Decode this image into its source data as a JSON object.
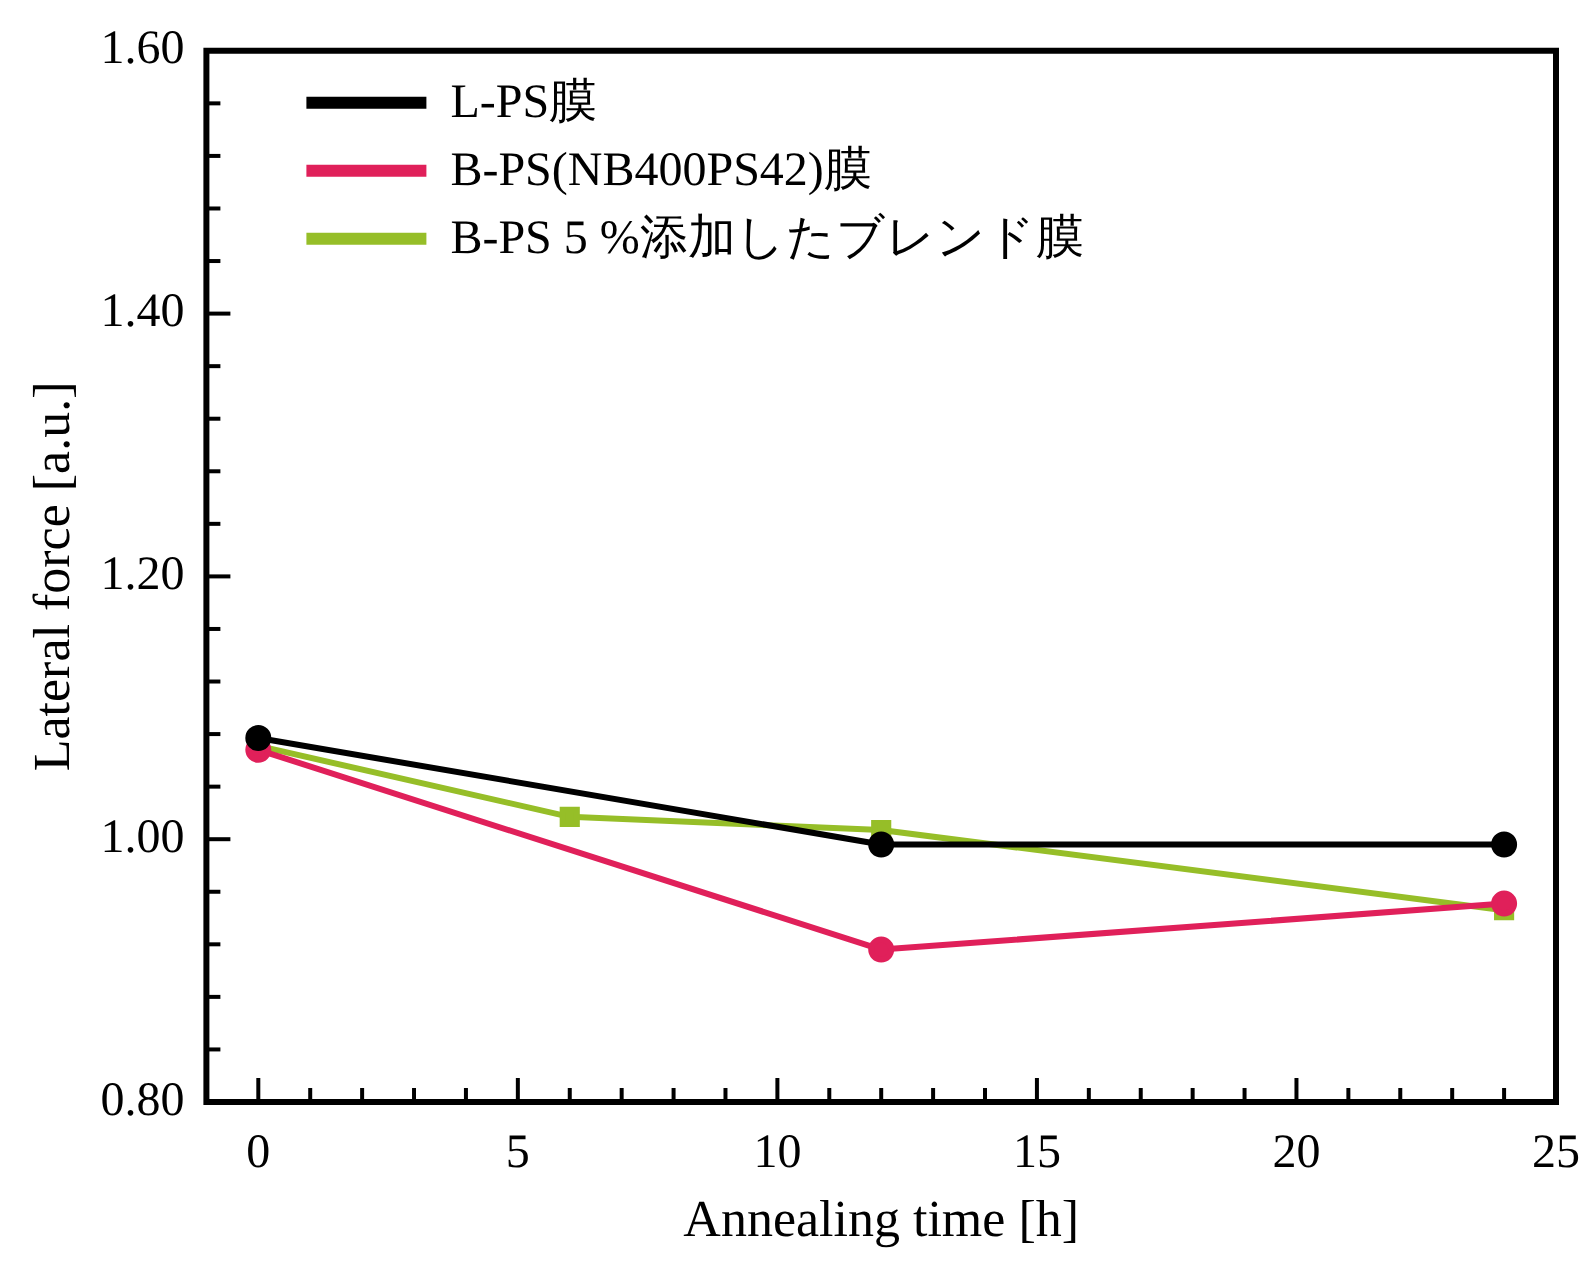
{
  "chart_data": {
    "type": "line",
    "xlabel": "Annealing time [h]",
    "ylabel": "Lateral force [a.u.]",
    "xlim": [
      -1,
      25
    ],
    "ylim": [
      0.8,
      1.6
    ],
    "xticks": [
      0,
      {
        "value": 1,
        "label": null
      },
      {
        "value": 2,
        "label": null
      },
      {
        "value": 3,
        "label": null
      },
      {
        "value": 4,
        "label": null
      },
      5,
      {
        "value": 6,
        "label": null
      },
      {
        "value": 7,
        "label": null
      },
      {
        "value": 8,
        "label": null
      },
      {
        "value": 9,
        "label": null
      },
      10,
      {
        "value": 11,
        "label": null
      },
      {
        "value": 12,
        "label": null
      },
      {
        "value": 13,
        "label": null
      },
      {
        "value": 14,
        "label": null
      },
      15,
      {
        "value": 16,
        "label": null
      },
      {
        "value": 17,
        "label": null
      },
      {
        "value": 18,
        "label": null
      },
      {
        "value": 19,
        "label": null
      },
      20,
      {
        "value": 21,
        "label": null
      },
      {
        "value": 22,
        "label": null
      },
      {
        "value": 23,
        "label": null
      },
      {
        "value": 24,
        "label": null
      },
      25
    ],
    "yticks": [
      {
        "value": 0.8,
        "label": "0.80"
      },
      {
        "value": 0.84,
        "label": null
      },
      {
        "value": 0.88,
        "label": null
      },
      {
        "value": 0.92,
        "label": null
      },
      {
        "value": 0.96,
        "label": null
      },
      {
        "value": 1.0,
        "label": "1.00"
      },
      {
        "value": 1.04,
        "label": null
      },
      {
        "value": 1.08,
        "label": null
      },
      {
        "value": 1.12,
        "label": null
      },
      {
        "value": 1.16,
        "label": null
      },
      {
        "value": 1.2,
        "label": "1.20"
      },
      {
        "value": 1.24,
        "label": null
      },
      {
        "value": 1.28,
        "label": null
      },
      {
        "value": 1.32,
        "label": null
      },
      {
        "value": 1.36,
        "label": null
      },
      {
        "value": 1.4,
        "label": "1.40"
      },
      {
        "value": 1.44,
        "label": null
      },
      {
        "value": 1.48,
        "label": null
      },
      {
        "value": 1.52,
        "label": null
      },
      {
        "value": 1.56,
        "label": null
      },
      {
        "value": 1.6,
        "label": "1.60"
      }
    ],
    "grid": false,
    "legend": "top left",
    "line_style": "solid",
    "series": [
      {
        "name": "L-PS膜",
        "color": "#000000",
        "marker": "circle",
        "x": [
          0,
          12,
          24
        ],
        "values": [
          1.077,
          0.996,
          0.996
        ]
      },
      {
        "name": "B-PS(NB400PS42)膜",
        "color": "#e0205a",
        "marker": "circle",
        "x": [
          0,
          12,
          24
        ],
        "values": [
          1.068,
          0.916,
          0.951
        ]
      },
      {
        "name": "B-PS 5 %添加したブレンド膜",
        "color": "#96be28",
        "marker": "square",
        "x": [
          0,
          6,
          12,
          24
        ],
        "values": [
          1.071,
          1.017,
          1.007,
          0.946
        ]
      }
    ]
  }
}
